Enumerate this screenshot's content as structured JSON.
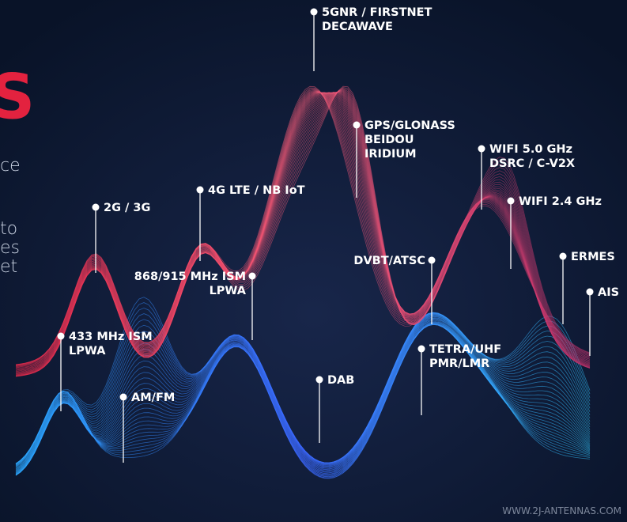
{
  "brand": {
    "heading": "S",
    "fragments": [
      "ce",
      "to",
      "es",
      "et"
    ]
  },
  "labels": [
    {
      "lines": [
        "5GNR / FIRSTNET",
        "DECAWAVE"
      ]
    },
    {
      "lines": [
        "GPS/GLONASS",
        "BEIDOU",
        "IRIDIUM"
      ]
    },
    {
      "lines": [
        "WIFI 5.0 GHz",
        "DSRC / C-V2X"
      ]
    },
    {
      "lines": [
        "WIFI 2.4 GHz"
      ]
    },
    {
      "lines": [
        "4G LTE / NB IoT"
      ]
    },
    {
      "lines": [
        "2G / 3G"
      ]
    },
    {
      "lines": [
        "868/915 MHz ISM",
        "LPWA"
      ]
    },
    {
      "lines": [
        "DVBT/ATSC"
      ]
    },
    {
      "lines": [
        "ERMES"
      ]
    },
    {
      "lines": [
        "AIS"
      ]
    },
    {
      "lines": [
        "433 MHz ISM",
        "LPWA"
      ]
    },
    {
      "lines": [
        "AM/FM"
      ]
    },
    {
      "lines": [
        "DAB"
      ]
    },
    {
      "lines": [
        "TETRA/UHF",
        "PMR/LMR"
      ]
    }
  ],
  "footer": "WWW.2J-ANTENNAS.COM"
}
